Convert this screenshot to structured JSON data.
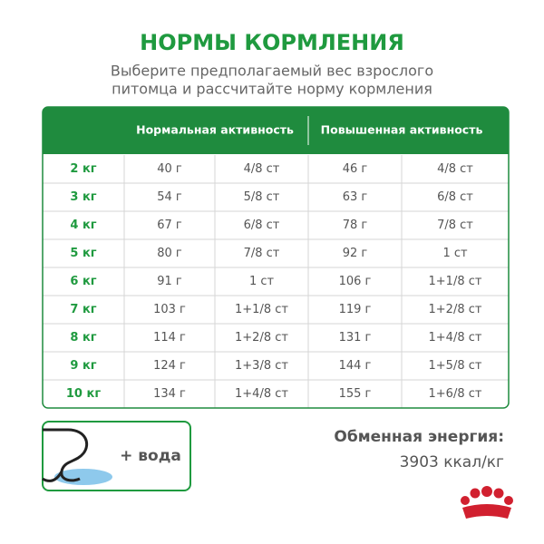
{
  "header": {
    "title": "НОРМЫ КОРМЛЕНИЯ",
    "subtitle": [
      "Выберите предполагаемый вес взрослого",
      "питомца и рассчитайте норму кормления"
    ]
  },
  "table": {
    "column_groups": [
      "Нормальная активность",
      "Повышенная активность"
    ],
    "rows": [
      [
        "2 кг",
        "40 г",
        "4/8 ст",
        "46 г",
        "4/8 ст"
      ],
      [
        "3 кг",
        "54 г",
        "5/8 ст",
        "63 г",
        "6/8 ст"
      ],
      [
        "4 кг",
        "67 г",
        "6/8 ст",
        "78 г",
        "7/8 ст"
      ],
      [
        "5 кг",
        "80 г",
        "7/8 ст",
        "92 г",
        "1 ст"
      ],
      [
        "6 кг",
        "91 г",
        "1 ст",
        "106 г",
        "1+1/8 ст"
      ],
      [
        "7 кг",
        "103 г",
        "1+1/8 ст",
        "119 г",
        "1+2/8 ст"
      ],
      [
        "8 кг",
        "114 г",
        "1+2/8 ст",
        "131 г",
        "1+4/8 ст"
      ],
      [
        "9 кг",
        "124 г",
        "1+3/8 ст",
        "144 г",
        "1+5/8 ст"
      ],
      [
        "10 кг",
        "134 г",
        "1+4/8 ст",
        "155 г",
        "1+6/8 ст"
      ]
    ]
  },
  "water_note": "+ вода",
  "energy": {
    "label": "Обменная энергия:",
    "value": "3903 ккал/кг"
  }
}
